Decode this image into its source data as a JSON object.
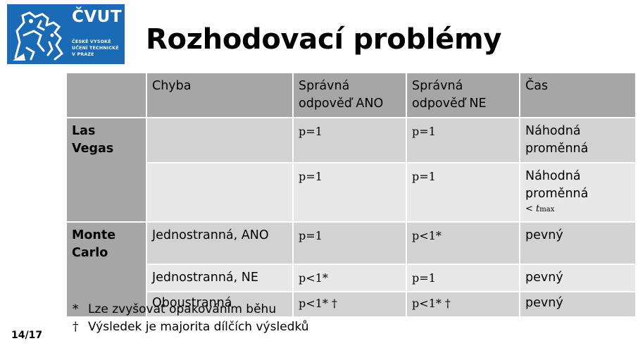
{
  "logo": {
    "wordmark": "ČVUT",
    "sub_lines": [
      "ČESKÉ VYSOKÉ",
      "UČENÍ TECHNICKÉ",
      "V PRAZE"
    ]
  },
  "title": "Rozhodovací problémy",
  "table": {
    "headers": [
      "",
      "Chyba",
      "Správná odpověď ANO",
      "Správná odpověď NE",
      "Čas"
    ],
    "groups": {
      "las_vegas": "Las Vegas",
      "monte_carlo": "Monte Carlo"
    },
    "rows": [
      {
        "chyba": "",
        "ano": "p=1",
        "ne": "p=1",
        "cas": "Náhodná proměnná",
        "cas_extra": ""
      },
      {
        "chyba": "",
        "ano": "p=1",
        "ne": "p=1",
        "cas": "Náhodná proměnná",
        "cas_extra": "< t"
      },
      {
        "chyba": "Jednostranná, ANO",
        "ano": "p=1",
        "ne": "p<1*",
        "cas": "pevný",
        "cas_extra": ""
      },
      {
        "chyba": "Jednostranná,  NE",
        "ano": "p<1*",
        "ne": "p=1",
        "cas": "pevný",
        "cas_extra": ""
      },
      {
        "chyba": "Oboustranná",
        "ano": "p<1* †",
        "ne": "p<1* †",
        "cas": "pevný",
        "cas_extra": ""
      }
    ],
    "tmax_subscript": "max"
  },
  "notes": [
    {
      "mark": "*",
      "text": "Lze zvyšovat opakováním běhu"
    },
    {
      "mark": "†",
      "text": "Výsledek je majorita dílčích výsledků"
    }
  ],
  "page": "14/17",
  "colors": {
    "logo_blue": "#1a6ab5",
    "header_gray": "#a6a6a6",
    "row_dark": "#d2d2d2",
    "row_light": "#e8e8e8"
  }
}
